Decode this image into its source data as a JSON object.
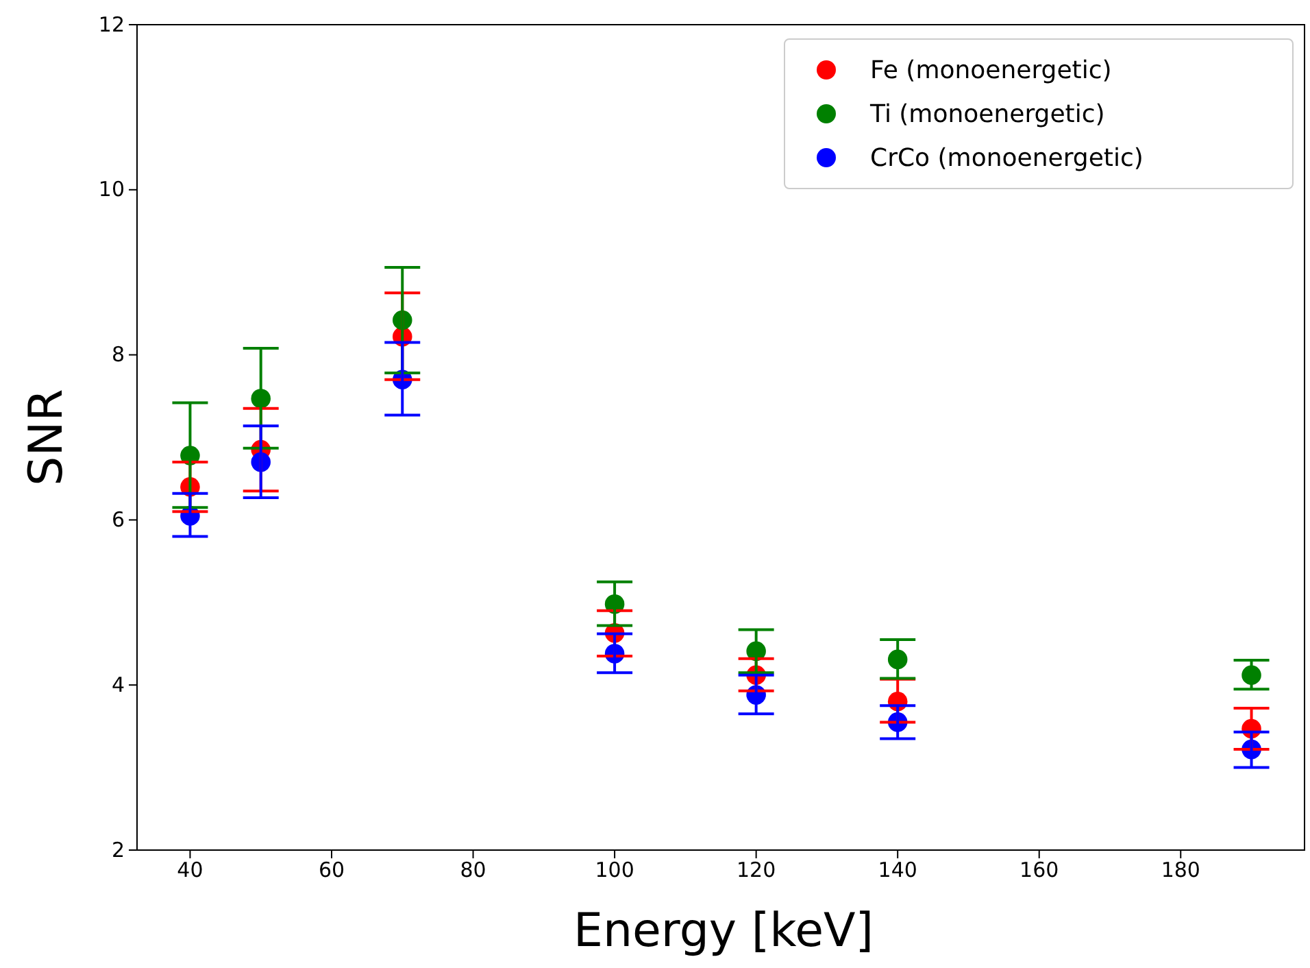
{
  "chart_data": {
    "type": "scatter",
    "xlabel": "Energy [keV]",
    "ylabel": "SNR",
    "x": [
      40,
      50,
      70,
      100,
      120,
      140,
      190
    ],
    "xlim": [
      32.5,
      197.5
    ],
    "xticks": [
      40,
      60,
      80,
      100,
      120,
      140,
      160,
      180
    ],
    "ylim": [
      2,
      12
    ],
    "yticks": [
      2,
      4,
      6,
      8,
      10,
      12
    ],
    "marker": "circle",
    "legend": "top right",
    "grid": false,
    "series": [
      {
        "name": "Fe (monoenergetic)",
        "color": "#ff0000",
        "values": [
          6.4,
          6.85,
          8.22,
          4.63,
          4.12,
          3.8,
          3.47
        ],
        "errors": [
          [
            6.1,
            6.7
          ],
          [
            6.35,
            7.35
          ],
          [
            7.7,
            8.75
          ],
          [
            4.35,
            4.9
          ],
          [
            3.93,
            4.32
          ],
          [
            3.55,
            4.07
          ],
          [
            3.22,
            3.72
          ]
        ]
      },
      {
        "name": "Ti (monoenergetic)",
        "color": "#008000",
        "values": [
          6.78,
          7.47,
          8.42,
          4.98,
          4.41,
          4.31,
          4.12
        ],
        "errors": [
          [
            6.15,
            7.42
          ],
          [
            6.87,
            8.08
          ],
          [
            7.78,
            9.06
          ],
          [
            4.72,
            5.25
          ],
          [
            4.15,
            4.67
          ],
          [
            4.08,
            4.55
          ],
          [
            3.95,
            4.3
          ]
        ]
      },
      {
        "name": "CrCo (monoenergetic)",
        "color": "#0000ff",
        "values": [
          6.05,
          6.7,
          7.7,
          4.38,
          3.88,
          3.55,
          3.22
        ],
        "errors": [
          [
            5.8,
            6.32
          ],
          [
            6.27,
            7.14
          ],
          [
            7.27,
            8.15
          ],
          [
            4.15,
            4.62
          ],
          [
            3.65,
            4.12
          ],
          [
            3.35,
            3.75
          ],
          [
            3.0,
            3.43
          ]
        ]
      }
    ]
  }
}
